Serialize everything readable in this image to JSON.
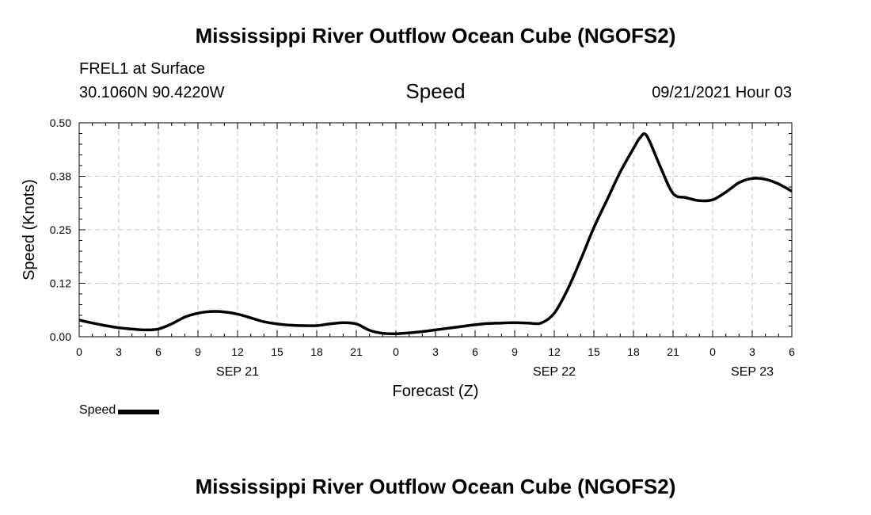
{
  "header": {
    "title": "Mississippi River Outflow Ocean Cube (NGOFS2)",
    "station": "FREL1 at Surface",
    "coords": "30.1060N  90.4220W",
    "chart_title": "Speed",
    "datetime": "09/21/2021 Hour 03"
  },
  "footer": {
    "title": "Mississippi River Outflow Ocean Cube (NGOFS2)"
  },
  "legend": {
    "label": "Speed"
  },
  "chart_data": {
    "type": "line",
    "title": "Speed",
    "xlabel": "Forecast (Z)",
    "ylabel": "Speed (Knots)",
    "xlim": [
      0,
      54
    ],
    "ylim": [
      0,
      0.5
    ],
    "grid": true,
    "x_unit": "forecast hour from 2021-09-21 00Z",
    "x_ticks": [
      {
        "x": 0,
        "label": "0"
      },
      {
        "x": 3,
        "label": "3"
      },
      {
        "x": 6,
        "label": "6"
      },
      {
        "x": 9,
        "label": "9"
      },
      {
        "x": 12,
        "label": "12"
      },
      {
        "x": 15,
        "label": "15"
      },
      {
        "x": 18,
        "label": "18"
      },
      {
        "x": 21,
        "label": "21"
      },
      {
        "x": 24,
        "label": "0"
      },
      {
        "x": 27,
        "label": "3"
      },
      {
        "x": 30,
        "label": "6"
      },
      {
        "x": 33,
        "label": "9"
      },
      {
        "x": 36,
        "label": "12"
      },
      {
        "x": 39,
        "label": "15"
      },
      {
        "x": 42,
        "label": "18"
      },
      {
        "x": 45,
        "label": "21"
      },
      {
        "x": 48,
        "label": "0"
      },
      {
        "x": 51,
        "label": "3"
      },
      {
        "x": 54,
        "label": "6"
      }
    ],
    "date_labels": [
      {
        "x": 12,
        "label": "SEP 21"
      },
      {
        "x": 36,
        "label": "SEP 22"
      },
      {
        "x": 51,
        "label": "SEP 23"
      }
    ],
    "y_ticks": [
      {
        "y": 0.0,
        "label": "0.00"
      },
      {
        "y": 0.125,
        "label": "0.12"
      },
      {
        "y": 0.25,
        "label": "0.25"
      },
      {
        "y": 0.375,
        "label": "0.38"
      },
      {
        "y": 0.5,
        "label": "0.50"
      }
    ],
    "series": [
      {
        "name": "Speed",
        "color": "#000000",
        "x": [
          0,
          1,
          2,
          3,
          4,
          5,
          6,
          7,
          8,
          9,
          10,
          11,
          12,
          13,
          14,
          15,
          16,
          17,
          18,
          19,
          20,
          21,
          22,
          23,
          24,
          25,
          26,
          27,
          28,
          29,
          30,
          31,
          32,
          33,
          34,
          35,
          36,
          37,
          38,
          39,
          40,
          41,
          42,
          42.5,
          43,
          44,
          45,
          46,
          47,
          48,
          49,
          50,
          51,
          52,
          53,
          54
        ],
        "y": [
          0.039,
          0.032,
          0.026,
          0.021,
          0.018,
          0.016,
          0.018,
          0.03,
          0.046,
          0.055,
          0.059,
          0.058,
          0.053,
          0.044,
          0.035,
          0.03,
          0.027,
          0.026,
          0.026,
          0.03,
          0.033,
          0.03,
          0.015,
          0.008,
          0.007,
          0.009,
          0.012,
          0.016,
          0.02,
          0.024,
          0.028,
          0.031,
          0.032,
          0.033,
          0.032,
          0.032,
          0.055,
          0.11,
          0.18,
          0.255,
          0.32,
          0.385,
          0.44,
          0.465,
          0.47,
          0.4,
          0.335,
          0.325,
          0.318,
          0.32,
          0.338,
          0.36,
          0.37,
          0.368,
          0.357,
          0.34
        ]
      }
    ]
  }
}
